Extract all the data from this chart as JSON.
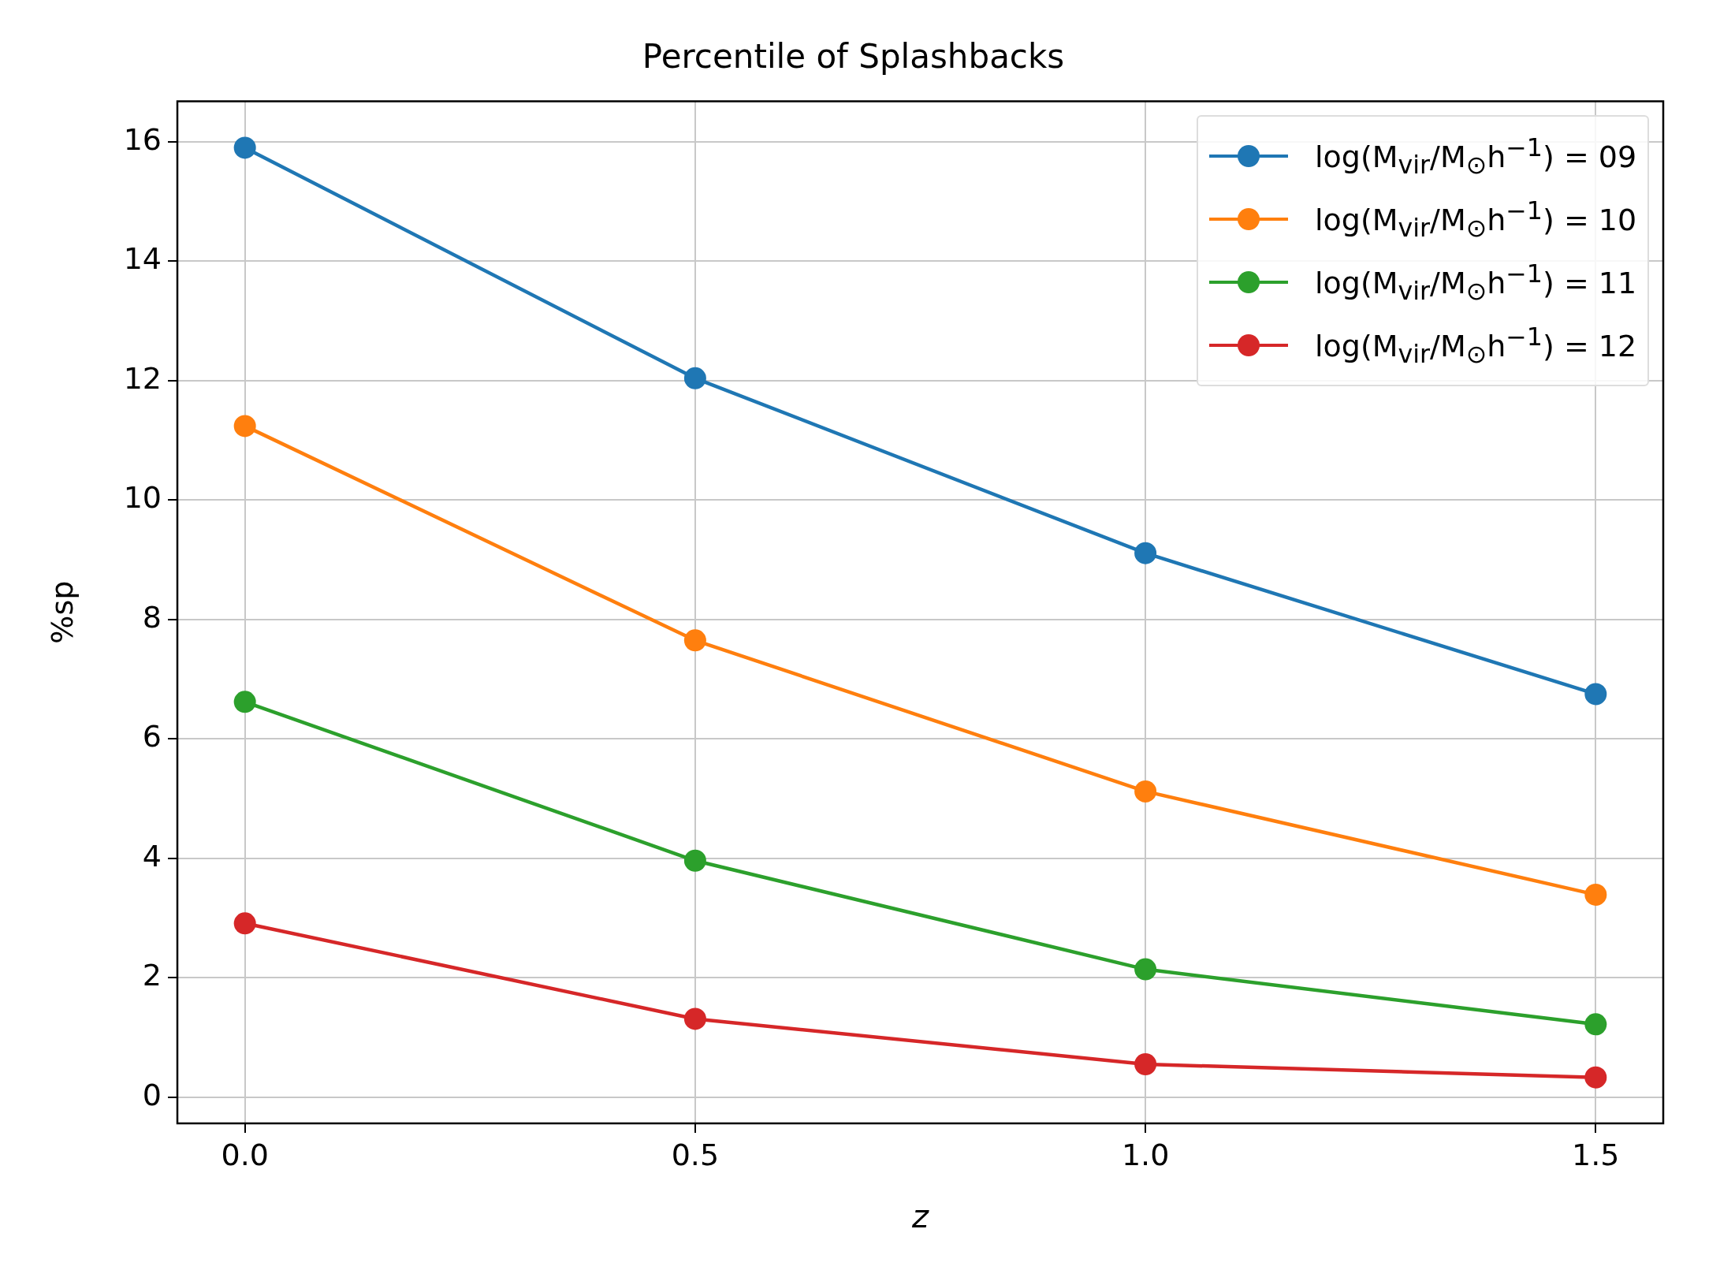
{
  "chart_data": {
    "type": "line",
    "title": "Percentile of Splashbacks",
    "xlabel": "z",
    "ylabel": "%sp",
    "x": [
      0,
      0.5,
      1.0,
      1.5
    ],
    "series": [
      {
        "name": "log(M$_{vir}$/M$_{⊙}$h$^{−1}$) = 09",
        "color": "#1f77b4",
        "values": [
          15.9,
          12.04,
          9.11,
          6.75
        ]
      },
      {
        "name": "log(M$_{vir}$/M$_{⊙}$h$^{−1}$) = 10",
        "color": "#ff7f0e",
        "values": [
          11.24,
          7.65,
          5.12,
          3.39
        ]
      },
      {
        "name": "log(M$_{vir}$/M$_{⊙}$h$^{−1}$) = 11",
        "color": "#2ca02c",
        "values": [
          6.62,
          3.96,
          2.14,
          1.22
        ]
      },
      {
        "name": "log(M$_{vir}$/M$_{⊙}$h$^{−1}$) = 12",
        "color": "#d62728",
        "values": [
          2.91,
          1.31,
          0.55,
          0.33
        ]
      }
    ],
    "xlim": [
      -0.075,
      1.575
    ],
    "ylim": [
      -0.44,
      16.68
    ],
    "xticks": [
      {
        "value": 0,
        "label": "0.0"
      },
      {
        "value": 0.5,
        "label": "0.5"
      },
      {
        "value": 1.0,
        "label": "1.0"
      },
      {
        "value": 1.5,
        "label": "1.5"
      }
    ],
    "yticks": [
      0,
      2,
      4,
      6,
      8,
      10,
      12,
      14,
      16
    ],
    "grid": true,
    "legend": "top right",
    "marker": "circle",
    "line_style": "solid"
  }
}
